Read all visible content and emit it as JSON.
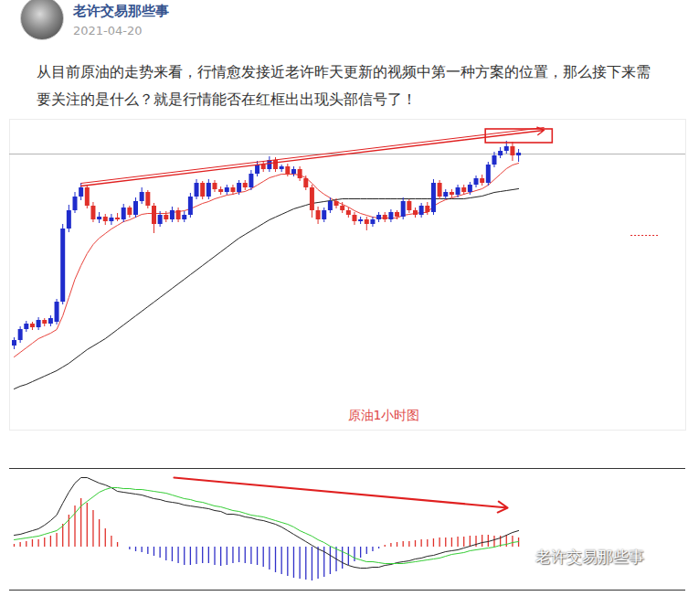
{
  "header": {
    "account": "老许交易那些事",
    "date": "2021-04-20"
  },
  "text": "从目前原油的走势来看，行情愈发接近老许昨天更新的视频中第一种方案的位置，那么接下来需要关注的是什么？就是行情能否在红框出出现头部信号了！",
  "watermark": "老许交易那些事",
  "chart_data": [
    {
      "type": "candlestick",
      "title": "原油1小时图",
      "x": [
        1,
        2,
        3,
        4,
        5,
        6,
        7,
        8,
        9,
        10,
        11,
        12,
        13,
        14,
        15,
        16,
        17,
        18,
        19,
        20,
        21,
        22,
        23,
        24,
        25,
        26,
        27,
        28,
        29,
        30,
        31,
        32,
        33,
        34,
        35,
        36,
        37,
        38,
        39,
        40,
        41,
        42,
        43,
        44,
        45,
        46,
        47,
        48,
        49,
        50,
        51,
        52,
        53,
        54,
        55,
        56,
        57,
        58,
        59,
        60,
        61,
        62,
        63,
        64,
        65,
        66,
        67,
        68,
        69,
        70,
        71,
        72,
        73,
        74,
        75,
        76,
        77,
        78,
        79,
        80,
        81,
        82,
        83,
        84
      ],
      "open": [
        7.2,
        7.8,
        9.0,
        9.6,
        9.2,
        10.0,
        9.6,
        9.8,
        12.0,
        20.0,
        22.0,
        23.5,
        24.5,
        22.5,
        21.0,
        21.3,
        20.8,
        21.2,
        21.0,
        22.3,
        21.5,
        23.0,
        24.0,
        22.5,
        20.5,
        21.5,
        21.0,
        22.0,
        21.0,
        21.5,
        23.5,
        25.0,
        23.5,
        25.0,
        24.3,
        24.0,
        24.5,
        24.0,
        25.0,
        24.5,
        26.0,
        27.0,
        26.5,
        27.5,
        26.5,
        26.8,
        26.0,
        26.5,
        25.5,
        24.5,
        22.0,
        21.0,
        22.0,
        23.0,
        22.5,
        22.0,
        21.5,
        20.8,
        21.0,
        20.5,
        21.0,
        21.5,
        21.0,
        21.8,
        21.3,
        23.0,
        22.0,
        21.5,
        22.5,
        21.8,
        25.0,
        23.5,
        24.0,
        23.7,
        24.5,
        24.0,
        24.8,
        25.5,
        25.0,
        27.0,
        28.0,
        28.5,
        29.0,
        28.0
      ],
      "high": [
        8.1,
        9.3,
        9.9,
        9.8,
        10.3,
        10.2,
        10.5,
        12.3,
        20.5,
        22.6,
        24.0,
        25.0,
        24.8,
        22.9,
        21.8,
        21.6,
        21.6,
        21.7,
        22.7,
        22.5,
        23.4,
        24.5,
        24.2,
        22.8,
        21.9,
        21.9,
        22.4,
        22.3,
        21.9,
        23.9,
        25.4,
        25.2,
        25.4,
        25.3,
        24.6,
        24.8,
        24.8,
        25.3,
        25.3,
        26.4,
        27.4,
        27.4,
        27.9,
        27.8,
        27.0,
        27.1,
        26.8,
        26.8,
        25.8,
        24.8,
        22.4,
        22.3,
        23.4,
        23.3,
        22.9,
        22.3,
        21.8,
        21.3,
        21.3,
        21.3,
        21.8,
        21.8,
        22.1,
        22.0,
        23.4,
        23.2,
        22.3,
        22.8,
        22.9,
        25.4,
        25.3,
        24.3,
        24.3,
        24.8,
        24.8,
        25.1,
        25.8,
        25.9,
        27.3,
        28.4,
        28.9,
        29.6,
        29.5,
        28.7
      ],
      "low": [
        6.8,
        7.5,
        8.7,
        8.9,
        8.9,
        9.3,
        9.3,
        9.5,
        11.7,
        19.6,
        21.7,
        23.1,
        22.2,
        20.7,
        20.6,
        20.4,
        20.4,
        20.8,
        20.7,
        21.2,
        21.2,
        22.7,
        22.2,
        19.5,
        20.2,
        20.7,
        20.7,
        20.7,
        20.7,
        21.2,
        23.2,
        23.2,
        23.2,
        24.0,
        23.7,
        23.7,
        23.7,
        23.7,
        24.2,
        24.2,
        25.7,
        26.2,
        26.2,
        26.2,
        26.2,
        25.7,
        25.7,
        25.2,
        24.2,
        21.2,
        20.5,
        20.7,
        21.7,
        22.2,
        21.7,
        21.2,
        20.4,
        20.5,
        19.8,
        20.2,
        20.7,
        20.7,
        20.7,
        21.0,
        21.0,
        21.7,
        21.2,
        21.2,
        21.5,
        21.5,
        23.2,
        23.2,
        23.4,
        23.4,
        23.7,
        23.7,
        24.5,
        24.7,
        24.7,
        26.7,
        27.7,
        28.2,
        27.4,
        27.3
      ],
      "close": [
        7.8,
        9.0,
        9.6,
        9.2,
        10.0,
        9.6,
        10.2,
        12.0,
        20.0,
        22.0,
        23.5,
        24.5,
        22.5,
        21.0,
        21.3,
        20.8,
        21.2,
        21.0,
        22.3,
        21.5,
        23.0,
        24.0,
        22.5,
        20.5,
        21.5,
        21.0,
        22.0,
        21.0,
        21.5,
        23.5,
        25.0,
        23.5,
        25.0,
        24.3,
        24.0,
        24.5,
        24.0,
        25.0,
        24.5,
        26.0,
        27.0,
        26.5,
        27.5,
        26.5,
        26.8,
        26.0,
        26.5,
        25.5,
        24.5,
        22.0,
        21.0,
        22.0,
        23.0,
        22.5,
        22.0,
        21.5,
        20.8,
        21.0,
        20.5,
        21.0,
        21.5,
        21.0,
        21.8,
        21.3,
        23.0,
        22.0,
        21.5,
        22.5,
        21.8,
        25.0,
        23.5,
        24.0,
        23.7,
        24.5,
        24.0,
        24.8,
        25.5,
        25.0,
        27.0,
        28.0,
        28.5,
        29.0,
        28.0,
        28.3
      ],
      "colors": [
        "#1f2ccc",
        "#1f2ccc",
        "#1f2ccc",
        "#e0302a",
        "#1f2ccc",
        "#e0302a",
        "#1f2ccc",
        "#1f2ccc",
        "#1f2ccc",
        "#1f2ccc",
        "#1f2ccc",
        "#1f2ccc",
        "#e0302a",
        "#e0302a",
        "#1f2ccc",
        "#e0302a",
        "#1f2ccc",
        "#e0302a",
        "#1f2ccc",
        "#e0302a",
        "#1f2ccc",
        "#1f2ccc",
        "#e0302a",
        "#e0302a",
        "#1f2ccc",
        "#e0302a",
        "#1f2ccc",
        "#e0302a",
        "#1f2ccc",
        "#1f2ccc",
        "#1f2ccc",
        "#e0302a",
        "#1f2ccc",
        "#e0302a",
        "#e0302a",
        "#1f2ccc",
        "#e0302a",
        "#1f2ccc",
        "#e0302a",
        "#1f2ccc",
        "#1f2ccc",
        "#e0302a",
        "#1f2ccc",
        "#e0302a",
        "#1f2ccc",
        "#e0302a",
        "#1f2ccc",
        "#e0302a",
        "#e0302a",
        "#e0302a",
        "#e0302a",
        "#1f2ccc",
        "#1f2ccc",
        "#e0302a",
        "#e0302a",
        "#e0302a",
        "#e0302a",
        "#1f2ccc",
        "#e0302a",
        "#1f2ccc",
        "#1f2ccc",
        "#e0302a",
        "#1f2ccc",
        "#e0302a",
        "#1f2ccc",
        "#e0302a",
        "#e0302a",
        "#1f2ccc",
        "#e0302a",
        "#1f2ccc",
        "#e0302a",
        "#1f2ccc",
        "#e0302a",
        "#1f2ccc",
        "#e0302a",
        "#1f2ccc",
        "#1f2ccc",
        "#e0302a",
        "#1f2ccc",
        "#1f2ccc",
        "#1f2ccc",
        "#1f2ccc",
        "#e0302a",
        "#1f2ccc"
      ],
      "series": [
        {
          "type": "line",
          "color": "#e8413a",
          "values": [
            6.0,
            6.5,
            7.0,
            7.5,
            8.0,
            8.3,
            8.6,
            9.0,
            10.5,
            12.5,
            14.5,
            16.0,
            17.3,
            18.3,
            19.0,
            19.5,
            20.0,
            20.4,
            20.8,
            21.0,
            21.3,
            21.6,
            21.7,
            21.7,
            21.7,
            21.7,
            21.8,
            21.9,
            22.0,
            22.2,
            22.5,
            22.8,
            23.0,
            23.3,
            23.5,
            23.7,
            23.8,
            24.0,
            24.1,
            24.4,
            24.8,
            25.2,
            25.6,
            25.8,
            26.0,
            26.0,
            26.0,
            25.9,
            25.6,
            25.0,
            24.3,
            23.8,
            23.4,
            23.0,
            22.7,
            22.4,
            22.0,
            21.7,
            21.5,
            21.3,
            21.2,
            21.2,
            21.2,
            21.2,
            21.5,
            21.6,
            21.7,
            21.8,
            21.8,
            22.5,
            22.9,
            23.2,
            23.4,
            23.6,
            23.8,
            24.0,
            24.2,
            24.4,
            24.8,
            25.4,
            26.0,
            26.6,
            27.0,
            27.2
          ]
        },
        {
          "type": "line",
          "color": "#222222",
          "values": [
            2.5,
            2.8,
            3.0,
            3.3,
            3.6,
            3.9,
            4.2,
            4.5,
            4.9,
            5.3,
            5.8,
            6.3,
            6.8,
            7.2,
            7.6,
            8.0,
            8.5,
            9.0,
            9.5,
            10.0,
            10.5,
            11.0,
            11.5,
            12.0,
            12.5,
            13.0,
            13.5,
            14.0,
            14.5,
            15.0,
            15.5,
            16.0,
            16.5,
            17.0,
            17.5,
            18.0,
            18.5,
            19.0,
            19.4,
            19.8,
            20.2,
            20.6,
            21.0,
            21.3,
            21.6,
            21.9,
            22.2,
            22.4,
            22.6,
            22.8,
            22.9,
            23.0,
            23.1,
            23.2,
            23.3,
            23.3,
            23.3,
            23.3,
            23.3,
            23.3,
            23.3,
            23.3,
            23.3,
            23.3,
            23.3,
            23.3,
            23.3,
            23.3,
            23.3,
            23.3,
            23.3,
            23.3,
            23.3,
            23.3,
            23.3,
            23.4,
            23.5,
            23.6,
            23.8,
            24.0,
            24.1,
            24.2,
            24.3,
            24.4
          ]
        }
      ],
      "xlim": [
        0.25,
        111.5
      ],
      "ylim": [
        -2,
        32
      ],
      "tick_labels": false,
      "grid": false,
      "hline": 28.2,
      "trendline": {
        "x": [
          12.0,
          88.2
        ],
        "y": [
          24.7,
          30.8
        ]
      },
      "box": {
        "x": [
          78.6,
          89.6
        ],
        "y": [
          29.4,
          30.9
        ]
      },
      "level": {
        "x": [
          102.5,
          107.0
        ],
        "y": 19.3
      }
    },
    {
      "type": "macd",
      "x": [
        1,
        2,
        3,
        4,
        5,
        6,
        7,
        8,
        9,
        10,
        11,
        12,
        13,
        14,
        15,
        16,
        17,
        18,
        19,
        20,
        21,
        22,
        23,
        24,
        25,
        26,
        27,
        28,
        29,
        30,
        31,
        32,
        33,
        34,
        35,
        36,
        37,
        38,
        39,
        40,
        41,
        42,
        43,
        44,
        45,
        46,
        47,
        48,
        49,
        50,
        51,
        52,
        53,
        54,
        55,
        56,
        57,
        58,
        59,
        60,
        61,
        62,
        63,
        64,
        65,
        66,
        67,
        68,
        69,
        70,
        71,
        72,
        73,
        74,
        75,
        76,
        77,
        78,
        79,
        80,
        81,
        82,
        83,
        84
      ],
      "series": [
        {
          "type": "bar",
          "values": [
            0.3,
            0.5,
            0.6,
            0.8,
            0.8,
            1.0,
            1.2,
            1.5,
            2.5,
            3.5,
            4.5,
            5.3,
            4.8,
            4.0,
            3.0,
            2.0,
            1.2,
            0.5,
            0.0,
            -0.3,
            -0.5,
            -0.6,
            -0.8,
            -1.0,
            -1.2,
            -1.5,
            -1.6,
            -1.8,
            -2.0,
            -2.0,
            -1.9,
            -1.8,
            -1.8,
            -2.0,
            -2.1,
            -2.0,
            -1.8,
            -1.7,
            -1.8,
            -1.9,
            -2.0,
            -2.2,
            -2.5,
            -2.8,
            -3.0,
            -3.2,
            -3.4,
            -3.5,
            -3.6,
            -3.7,
            -3.5,
            -3.3,
            -3.0,
            -2.7,
            -2.4,
            -2.0,
            -1.6,
            -1.2,
            -0.8,
            -0.5,
            -0.2,
            0.2,
            0.4,
            0.5,
            0.6,
            0.6,
            0.7,
            0.8,
            0.8,
            0.9,
            1.0,
            1.0,
            1.0,
            1.1,
            1.1,
            1.2,
            1.2,
            1.3,
            1.3,
            1.2,
            1.2,
            1.3,
            1.2,
            1.0
          ],
          "colors": [
            "#e0302a",
            "#e0302a",
            "#e0302a",
            "#e0302a",
            "#e0302a",
            "#e0302a",
            "#e0302a",
            "#e0302a",
            "#e0302a",
            "#e0302a",
            "#e0302a",
            "#e0302a",
            "#e0302a",
            "#e0302a",
            "#e0302a",
            "#e0302a",
            "#e0302a",
            "#e0302a",
            "#e0302a",
            "#3030c8",
            "#3030c8",
            "#3030c8",
            "#3030c8",
            "#3030c8",
            "#3030c8",
            "#3030c8",
            "#3030c8",
            "#3030c8",
            "#3030c8",
            "#3030c8",
            "#3030c8",
            "#3030c8",
            "#3030c8",
            "#3030c8",
            "#3030c8",
            "#3030c8",
            "#3030c8",
            "#3030c8",
            "#3030c8",
            "#3030c8",
            "#3030c8",
            "#3030c8",
            "#3030c8",
            "#3030c8",
            "#3030c8",
            "#3030c8",
            "#3030c8",
            "#3030c8",
            "#3030c8",
            "#3030c8",
            "#3030c8",
            "#3030c8",
            "#3030c8",
            "#3030c8",
            "#3030c8",
            "#3030c8",
            "#3030c8",
            "#3030c8",
            "#3030c8",
            "#3030c8",
            "#3030c8",
            "#e0302a",
            "#e0302a",
            "#e0302a",
            "#e0302a",
            "#e0302a",
            "#e0302a",
            "#e0302a",
            "#e0302a",
            "#e0302a",
            "#e0302a",
            "#e0302a",
            "#e0302a",
            "#e0302a",
            "#e0302a",
            "#e0302a",
            "#e0302a",
            "#e0302a",
            "#e0302a",
            "#e0302a",
            "#e0302a",
            "#e0302a",
            "#e0302a",
            "#e0302a"
          ]
        },
        {
          "type": "line",
          "color": "#222222",
          "values": [
            1.3,
            1.4,
            1.6,
            1.8,
            2.0,
            2.4,
            2.9,
            3.5,
            4.8,
            6.0,
            7.0,
            7.6,
            7.6,
            7.3,
            7.0,
            6.8,
            6.5,
            6.1,
            6.0,
            5.9,
            5.8,
            5.7,
            5.5,
            5.3,
            5.2,
            5.0,
            4.9,
            4.8,
            4.6,
            4.5,
            4.4,
            4.3,
            4.2,
            4.0,
            3.9,
            3.6,
            3.6,
            3.5,
            3.3,
            3.2,
            3.0,
            2.9,
            2.7,
            2.5,
            2.2,
            1.8,
            1.4,
            1.0,
            0.6,
            0.2,
            -0.2,
            -0.5,
            -0.9,
            -1.3,
            -1.7,
            -2.0,
            -2.2,
            -2.3,
            -2.3,
            -2.2,
            -2.2,
            -2.0,
            -1.9,
            -1.7,
            -1.6,
            -1.5,
            -1.3,
            -1.2,
            -1.0,
            -0.9,
            -0.7,
            -0.5,
            -0.4,
            -0.3,
            -0.1,
            0.1,
            0.3,
            0.5,
            0.6,
            0.8,
            1.0,
            1.3,
            1.6,
            1.8
          ]
        },
        {
          "type": "line",
          "color": "#33cc33",
          "values": [
            0.8,
            0.9,
            1.0,
            1.1,
            1.2,
            1.4,
            1.6,
            1.8,
            2.3,
            3.0,
            3.7,
            4.5,
            5.0,
            5.5,
            6.0,
            6.3,
            6.5,
            6.5,
            6.4,
            6.4,
            6.3,
            6.3,
            6.2,
            6.1,
            6.0,
            5.9,
            5.7,
            5.5,
            5.3,
            5.2,
            5.0,
            4.9,
            4.7,
            4.5,
            4.4,
            4.2,
            4.0,
            3.9,
            3.7,
            3.5,
            3.4,
            3.3,
            3.1,
            2.9,
            2.7,
            2.5,
            2.2,
            1.8,
            1.5,
            1.2,
            0.8,
            0.5,
            0.1,
            -0.2,
            -0.5,
            -0.8,
            -1.2,
            -1.4,
            -1.6,
            -1.6,
            -1.7,
            -1.8,
            -1.8,
            -1.8,
            -1.8,
            -1.7,
            -1.6,
            -1.5,
            -1.4,
            -1.3,
            -1.2,
            -1.0,
            -0.8,
            -0.7,
            -0.6,
            -0.4,
            -0.3,
            -0.2,
            -0.1,
            0.0,
            0.2,
            0.3,
            0.5,
            0.6
          ]
        }
      ],
      "xlim": [
        0.25,
        111.5
      ],
      "ylim": [
        -4.7,
        8.6
      ],
      "tick_labels": false,
      "grid": false,
      "arrow": {
        "x": [
          27.3,
          82.2
        ],
        "y": [
          7.6,
          4.3
        ]
      }
    }
  ]
}
